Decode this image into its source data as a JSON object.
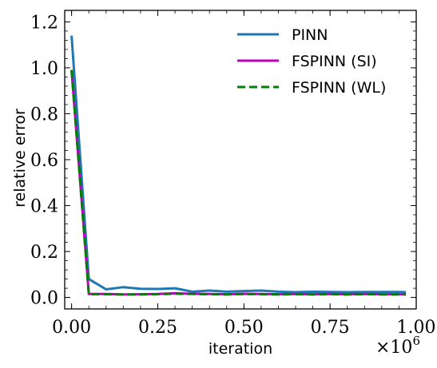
{
  "chart_data": {
    "type": "line",
    "xlabel": "iteration",
    "ylabel": "relative error",
    "x_offset_text": "×10",
    "x_offset_exponent": "6",
    "xlim": [
      -0.02,
      1.0
    ],
    "ylim": [
      -0.05,
      1.25
    ],
    "xticks": [
      0.0,
      0.25,
      0.5,
      0.75,
      1.0
    ],
    "xtick_labels": [
      "0.00",
      "0.25",
      "0.50",
      "0.75",
      "1.00"
    ],
    "yticks": [
      0.0,
      0.2,
      0.4,
      0.6,
      0.8,
      1.0,
      1.2
    ],
    "ytick_labels": [
      "0.0",
      "0.2",
      "0.4",
      "0.6",
      "0.8",
      "1.0",
      "1.2"
    ],
    "legend_position": "top-right",
    "grid": false,
    "x": [
      0.0,
      0.05,
      0.1,
      0.15,
      0.2,
      0.25,
      0.3,
      0.35,
      0.4,
      0.45,
      0.5,
      0.55,
      0.6,
      0.65,
      0.7,
      0.75,
      0.8,
      0.85,
      0.9,
      0.95,
      0.97
    ],
    "series": [
      {
        "name": "PINN",
        "color": "#1f77b4",
        "dash": "solid",
        "values": [
          1.14,
          0.08,
          0.035,
          0.045,
          0.038,
          0.037,
          0.04,
          0.025,
          0.03,
          0.025,
          0.028,
          0.03,
          0.025,
          0.023,
          0.025,
          0.024,
          0.023,
          0.024,
          0.024,
          0.024,
          0.023
        ]
      },
      {
        "name": "FSPINN (SI)",
        "color": "#bf00bf",
        "dash": "solid",
        "values": [
          0.99,
          0.015,
          0.015,
          0.013,
          0.014,
          0.015,
          0.018,
          0.016,
          0.015,
          0.014,
          0.016,
          0.015,
          0.014,
          0.015,
          0.014,
          0.015,
          0.014,
          0.015,
          0.014,
          0.014,
          0.014
        ]
      },
      {
        "name": "FSPINN (WL)",
        "color": "#008000",
        "dash": "dashed",
        "values": [
          0.99,
          0.014,
          0.014,
          0.013,
          0.013,
          0.014,
          0.016,
          0.015,
          0.014,
          0.013,
          0.015,
          0.014,
          0.013,
          0.014,
          0.013,
          0.014,
          0.013,
          0.014,
          0.013,
          0.013,
          0.013
        ]
      }
    ]
  }
}
